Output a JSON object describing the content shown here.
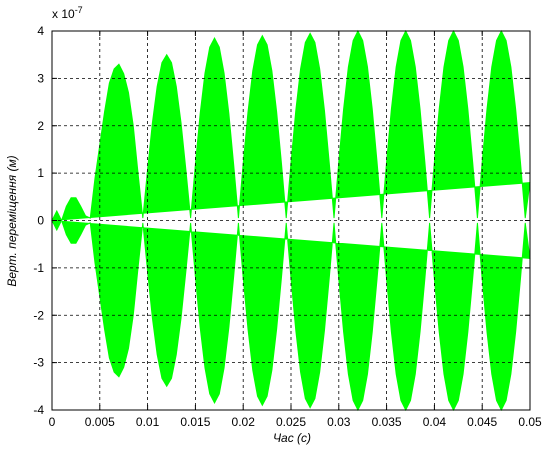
{
  "chart_data": {
    "type": "envelope",
    "x_label": "Час (с)",
    "y_label": "Верт. переміщення (м)",
    "y_multiplier": {
      "base": "x 10",
      "exponent": "-7"
    },
    "color": "#00ff00",
    "grid": true,
    "xlim": [
      0,
      0.05
    ],
    "ylim": [
      -4,
      4
    ],
    "xticks": [
      0,
      0.005,
      0.01,
      0.015,
      0.02,
      0.025,
      0.03,
      0.035,
      0.04,
      0.045,
      0.05
    ],
    "yticks": [
      -4,
      -3,
      -2,
      -1,
      0,
      1,
      2,
      3,
      4
    ],
    "x": [
      0,
      0.0005,
      0.001,
      0.0015,
      0.002,
      0.0025,
      0.003,
      0.0035,
      0.004,
      0.0045,
      0.005,
      0.0055,
      0.006,
      0.0065,
      0.007,
      0.0075,
      0.008,
      0.0085,
      0.009,
      0.0095,
      0.01,
      0.0105,
      0.011,
      0.0115,
      0.012,
      0.0125,
      0.013,
      0.0135,
      0.014,
      0.0145,
      0.015,
      0.0155,
      0.016,
      0.0165,
      0.017,
      0.0175,
      0.018,
      0.0185,
      0.019,
      0.0195,
      0.02,
      0.0205,
      0.021,
      0.0215,
      0.022,
      0.0225,
      0.023,
      0.0235,
      0.024,
      0.0245,
      0.025,
      0.0255,
      0.026,
      0.0265,
      0.027,
      0.0275,
      0.028,
      0.0285,
      0.029,
      0.0295,
      0.03,
      0.0305,
      0.031,
      0.0315,
      0.032,
      0.0325,
      0.033,
      0.0335,
      0.034,
      0.0345,
      0.035,
      0.0355,
      0.036,
      0.0365,
      0.037,
      0.0375,
      0.038,
      0.0385,
      0.039,
      0.0395,
      0.04,
      0.0405,
      0.041,
      0.0415,
      0.042,
      0.0425,
      0.043,
      0.0435,
      0.044,
      0.0445,
      0.045,
      0.0455,
      0.046,
      0.0465,
      0.047,
      0.0475,
      0.048,
      0.0485,
      0.049,
      0.0495,
      0.05
    ],
    "values": [
      0,
      0.2,
      0,
      0.3,
      0.48,
      0.48,
      0.3,
      0.1,
      0.05,
      0.9,
      1.6,
      2.3,
      2.9,
      3.2,
      3.3,
      3.1,
      2.7,
      2.0,
      1.0,
      0.05,
      1.08,
      2.06,
      2.83,
      3.33,
      3.5,
      3.33,
      2.83,
      2.06,
      1.08,
      0.05,
      1.19,
      2.26,
      3.11,
      3.66,
      3.85,
      3.66,
      3.11,
      2.26,
      1.19,
      0.05,
      1.21,
      2.29,
      3.16,
      3.71,
      3.9,
      3.71,
      3.16,
      2.29,
      1.21,
      0.05,
      1.22,
      2.32,
      3.2,
      3.76,
      3.95,
      3.76,
      3.2,
      2.32,
      1.22,
      0.05,
      1.24,
      2.35,
      3.24,
      3.8,
      4,
      3.8,
      3.24,
      2.35,
      1.24,
      0.05,
      1.24,
      2.35,
      3.24,
      3.8,
      4,
      3.8,
      3.24,
      2.35,
      1.24,
      0.05,
      1.24,
      2.35,
      3.24,
      3.8,
      4,
      3.8,
      3.24,
      2.35,
      1.24,
      0.05,
      1.24,
      2.35,
      3.24,
      3.8,
      4,
      3.8,
      3.24,
      2.35,
      1.24,
      0.05,
      0.8
    ]
  }
}
